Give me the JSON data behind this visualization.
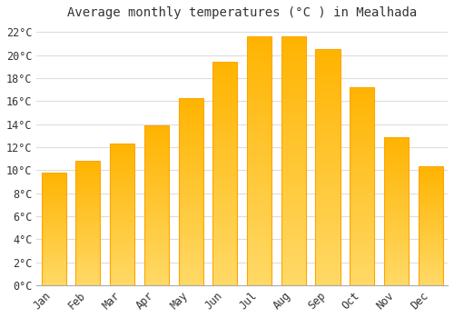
{
  "title": "Average monthly temperatures (°C ) in Mealhada",
  "months": [
    "Jan",
    "Feb",
    "Mar",
    "Apr",
    "May",
    "Jun",
    "Jul",
    "Aug",
    "Sep",
    "Oct",
    "Nov",
    "Dec"
  ],
  "values": [
    9.8,
    10.8,
    12.3,
    13.9,
    16.3,
    19.4,
    21.6,
    21.6,
    20.5,
    17.2,
    12.9,
    10.3
  ],
  "bar_color_top": "#FFB300",
  "bar_color_bottom": "#FFD966",
  "bar_edge_color": "#FFA500",
  "background_color": "#FFFFFF",
  "grid_color": "#DDDDDD",
  "text_color": "#333333",
  "ylim": [
    0,
    22.5
  ],
  "ytick_values": [
    0,
    2,
    4,
    6,
    8,
    10,
    12,
    14,
    16,
    18,
    20,
    22
  ],
  "title_fontsize": 10,
  "tick_fontsize": 8.5,
  "font_family": "monospace"
}
